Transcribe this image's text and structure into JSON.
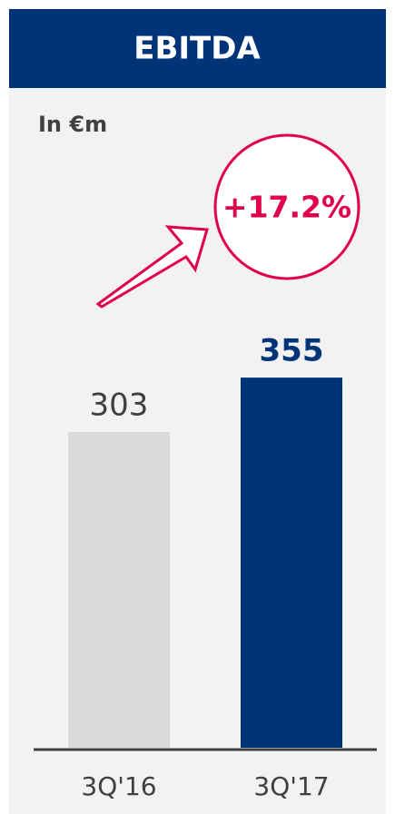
{
  "chart_data": {
    "type": "bar",
    "title": "EBITDA",
    "subtitle": "In €m",
    "annotation": "+17.2%",
    "categories": [
      "3Q'16",
      "3Q'17"
    ],
    "values": [
      303,
      355
    ],
    "colors": [
      "#d9dadc",
      "#003478"
    ],
    "ylim": [
      0,
      400
    ]
  }
}
